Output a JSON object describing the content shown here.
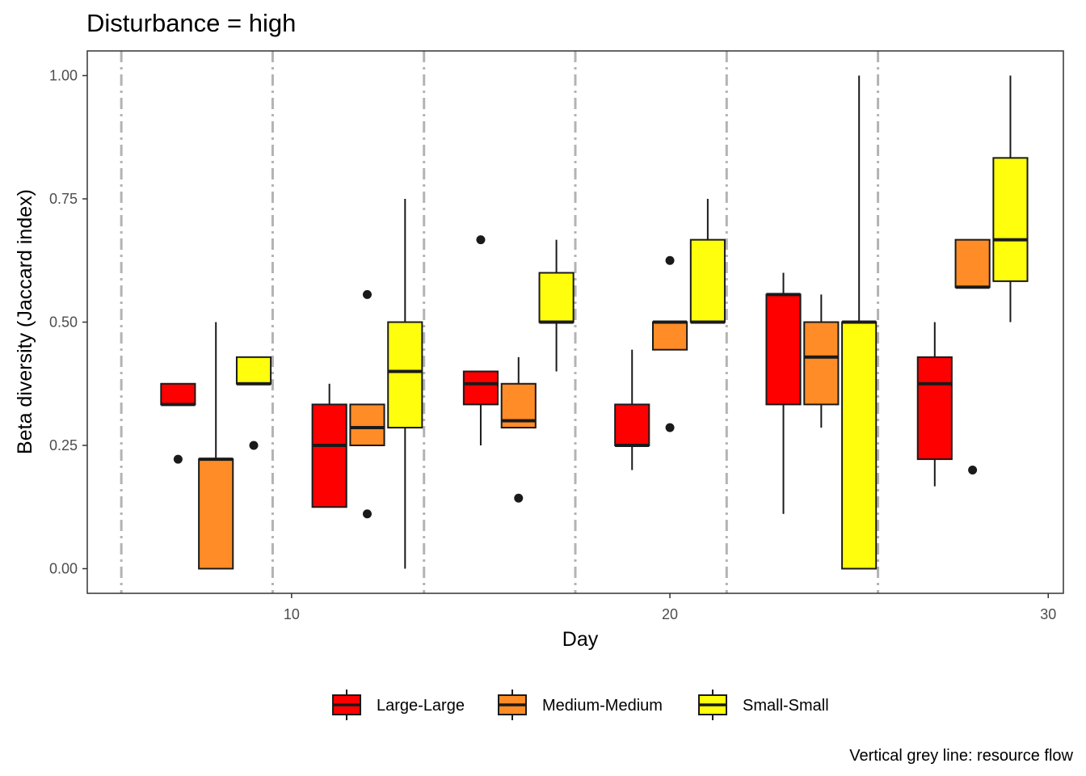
{
  "chart_data": {
    "type": "box",
    "title": "Disturbance = high",
    "xlabel": "Day",
    "ylabel": "Beta diversity (Jaccard index)",
    "caption": "Vertical grey line: resource flow",
    "xlim": [
      4.6,
      30.4
    ],
    "ylim": [
      -0.05,
      1.05
    ],
    "x_ticks": [
      10,
      20,
      30
    ],
    "y_ticks": [
      "0.00",
      "0.25",
      "0.50",
      "0.75",
      "1.00"
    ],
    "grid": false,
    "legend_position": "bottom",
    "vlines": [
      5.5,
      9.5,
      13.5,
      17.5,
      21.5,
      25.5
    ],
    "vline_color": "#b3b3b3",
    "series": [
      {
        "name": "Large-Large",
        "color": "#ff0000",
        "boxes": [
          {
            "x": 7,
            "min": 0.333,
            "q1": 0.333,
            "median": 0.333,
            "q3": 0.375,
            "max": 0.375,
            "outliers": [
              0.222
            ]
          },
          {
            "x": 11,
            "min": 0.125,
            "q1": 0.125,
            "median": 0.25,
            "q3": 0.333,
            "max": 0.375,
            "outliers": []
          },
          {
            "x": 15,
            "min": 0.25,
            "q1": 0.333,
            "median": 0.375,
            "q3": 0.4,
            "max": 0.4,
            "outliers": [
              0.667
            ]
          },
          {
            "x": 19,
            "min": 0.2,
            "q1": 0.25,
            "median": 0.25,
            "q3": 0.333,
            "max": 0.444,
            "outliers": []
          },
          {
            "x": 23,
            "min": 0.111,
            "q1": 0.333,
            "median": 0.556,
            "q3": 0.556,
            "max": 0.6,
            "outliers": []
          },
          {
            "x": 27,
            "min": 0.167,
            "q1": 0.222,
            "median": 0.375,
            "q3": 0.429,
            "max": 0.5,
            "outliers": []
          }
        ]
      },
      {
        "name": "Medium-Medium",
        "color": "#ff8c26",
        "boxes": [
          {
            "x": 8,
            "min": 0.0,
            "q1": 0.0,
            "median": 0.222,
            "q3": 0.222,
            "max": 0.5,
            "outliers": []
          },
          {
            "x": 12,
            "min": 0.25,
            "q1": 0.25,
            "median": 0.286,
            "q3": 0.333,
            "max": 0.333,
            "outliers": [
              0.556,
              0.111
            ]
          },
          {
            "x": 16,
            "min": 0.286,
            "q1": 0.286,
            "median": 0.3,
            "q3": 0.375,
            "max": 0.429,
            "outliers": [
              0.143
            ]
          },
          {
            "x": 20,
            "min": 0.444,
            "q1": 0.444,
            "median": 0.5,
            "q3": 0.5,
            "max": 0.5,
            "outliers": [
              0.625,
              0.286
            ]
          },
          {
            "x": 24,
            "min": 0.286,
            "q1": 0.333,
            "median": 0.429,
            "q3": 0.5,
            "max": 0.556,
            "outliers": []
          },
          {
            "x": 28,
            "min": 0.571,
            "q1": 0.571,
            "median": 0.571,
            "q3": 0.667,
            "max": 0.667,
            "outliers": [
              0.2
            ]
          }
        ]
      },
      {
        "name": "Small-Small",
        "color": "#ffff0d",
        "boxes": [
          {
            "x": 9,
            "min": 0.375,
            "q1": 0.375,
            "median": 0.375,
            "q3": 0.429,
            "max": 0.429,
            "outliers": [
              0.25
            ]
          },
          {
            "x": 13,
            "min": 0.0,
            "q1": 0.286,
            "median": 0.4,
            "q3": 0.5,
            "max": 0.75,
            "outliers": []
          },
          {
            "x": 17,
            "min": 0.4,
            "q1": 0.5,
            "median": 0.5,
            "q3": 0.6,
            "max": 0.667,
            "outliers": []
          },
          {
            "x": 21,
            "min": 0.5,
            "q1": 0.5,
            "median": 0.5,
            "q3": 0.667,
            "max": 0.75,
            "outliers": []
          },
          {
            "x": 25,
            "min": 0.0,
            "q1": 0.0,
            "median": 0.5,
            "q3": 0.5,
            "max": 1.0,
            "outliers": []
          },
          {
            "x": 29,
            "min": 0.5,
            "q1": 0.583,
            "median": 0.667,
            "q3": 0.833,
            "max": 1.0,
            "outliers": []
          }
        ]
      }
    ]
  }
}
